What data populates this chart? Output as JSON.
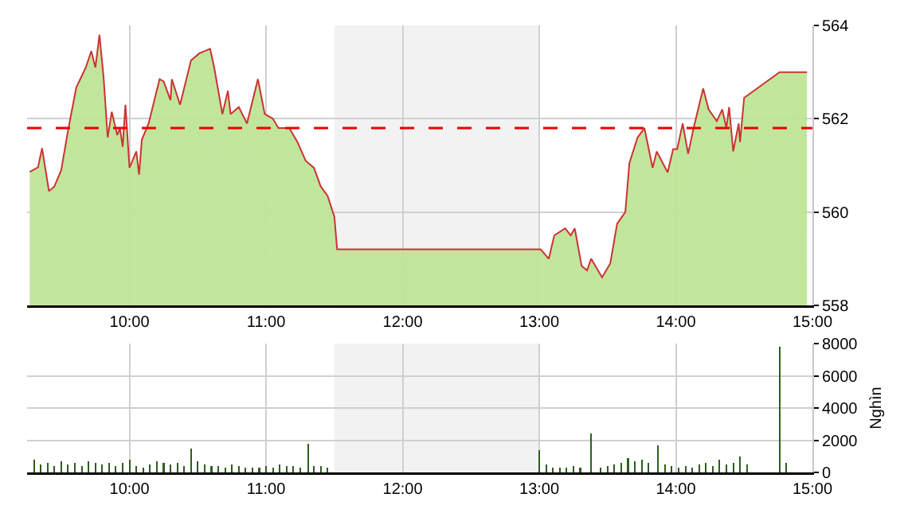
{
  "chart_data": [
    {
      "type": "area",
      "x": [
        9.27,
        9.33,
        9.36,
        9.41,
        9.45,
        9.5,
        9.55,
        9.61,
        9.68,
        9.72,
        9.75,
        9.78,
        9.81,
        9.84,
        9.87,
        9.91,
        9.93,
        9.95,
        9.97,
        10.0,
        10.05,
        10.07,
        10.09,
        10.14,
        10.22,
        10.25,
        10.3,
        10.31,
        10.37,
        10.45,
        10.51,
        10.59,
        10.62,
        10.68,
        10.72,
        10.74,
        10.8,
        10.86,
        10.94,
        10.99,
        11.05,
        11.09,
        11.17,
        11.23,
        11.29,
        11.35,
        11.4,
        11.45,
        11.5,
        11.52,
        13.01,
        13.07,
        13.11,
        13.19,
        13.23,
        13.26,
        13.31,
        13.35,
        13.38,
        13.46,
        13.52,
        13.57,
        13.63,
        13.66,
        13.72,
        13.77,
        13.83,
        13.86,
        13.94,
        13.98,
        14.01,
        14.05,
        14.09,
        14.13,
        14.2,
        14.24,
        14.3,
        14.34,
        14.37,
        14.39,
        14.42,
        14.46,
        14.47,
        14.5,
        14.76,
        14.96
      ],
      "series": [
        {
          "color": "#cc3333",
          "values": [
            560.86,
            560.96,
            561.37,
            560.45,
            560.55,
            560.9,
            561.75,
            562.67,
            563.1,
            563.45,
            563.1,
            563.8,
            562.9,
            561.6,
            562.15,
            561.65,
            561.8,
            561.4,
            562.3,
            560.95,
            561.3,
            560.8,
            561.55,
            561.9,
            562.85,
            562.8,
            562.4,
            562.85,
            562.3,
            563.25,
            563.4,
            563.5,
            563.1,
            562.1,
            562.6,
            562.1,
            562.25,
            561.9,
            562.85,
            562.1,
            562.0,
            561.8,
            561.8,
            561.5,
            561.1,
            560.95,
            560.55,
            560.35,
            559.9,
            559.2,
            559.2,
            559.0,
            559.5,
            559.65,
            559.5,
            559.65,
            558.85,
            558.75,
            559.0,
            558.6,
            558.9,
            559.75,
            560.0,
            561.05,
            561.6,
            561.8,
            560.95,
            561.3,
            560.85,
            561.35,
            561.35,
            561.9,
            561.25,
            561.8,
            562.65,
            562.2,
            561.95,
            562.2,
            561.8,
            562.25,
            561.3,
            561.9,
            561.5,
            562.45,
            563.0,
            563.0
          ]
        }
      ],
      "xlim": [
        9.25,
        15
      ],
      "xticks": [
        {
          "value": 10,
          "label": "10:00"
        },
        {
          "value": 11,
          "label": "11:00"
        },
        {
          "value": 12,
          "label": "12:00"
        },
        {
          "value": 13,
          "label": "13:00"
        },
        {
          "value": 14,
          "label": "14:00"
        },
        {
          "value": 15,
          "label": "15:00"
        }
      ],
      "ylim": [
        558,
        564
      ],
      "yticks": [
        558,
        560,
        562,
        564
      ],
      "grid": true,
      "ref_lines": [
        {
          "axis": "y",
          "value": 561.8,
          "color": "#ee0000",
          "line_style": "dashed"
        }
      ],
      "bands": [
        {
          "axis": "x",
          "from": 11.5,
          "to": 13.0,
          "color": "#f2f2f2"
        }
      ]
    },
    {
      "type": "bar",
      "ylabel": "Nghìn",
      "x": [
        9.3,
        9.35,
        9.4,
        9.45,
        9.5,
        9.55,
        9.6,
        9.65,
        9.7,
        9.75,
        9.8,
        9.85,
        9.9,
        9.95,
        10.0,
        10.05,
        10.1,
        10.15,
        10.2,
        10.25,
        10.3,
        10.35,
        10.4,
        10.45,
        10.5,
        10.55,
        10.6,
        10.65,
        10.7,
        10.75,
        10.8,
        10.85,
        10.9,
        10.95,
        11.0,
        11.05,
        11.1,
        11.15,
        11.2,
        11.25,
        11.31,
        11.35,
        11.4,
        11.45,
        13.0,
        13.05,
        13.1,
        13.15,
        13.2,
        13.25,
        13.3,
        13.38,
        13.45,
        13.5,
        13.55,
        13.6,
        13.65,
        13.7,
        13.75,
        13.8,
        13.87,
        13.92,
        13.97,
        14.02,
        14.07,
        14.12,
        14.17,
        14.22,
        14.27,
        14.32,
        14.37,
        14.42,
        14.47,
        14.52,
        14.76,
        14.81
      ],
      "series": [
        {
          "color": "#2e5e1e",
          "values": [
            800,
            500,
            600,
            400,
            700,
            500,
            600,
            400,
            700,
            600,
            500,
            600,
            400,
            600,
            800,
            400,
            300,
            500,
            700,
            600,
            500,
            600,
            400,
            1500,
            700,
            500,
            400,
            400,
            300,
            500,
            400,
            300,
            300,
            300,
            400,
            300,
            500,
            400,
            400,
            300,
            1800,
            400,
            400,
            300,
            1400,
            500,
            300,
            300,
            300,
            400,
            300,
            2400,
            300,
            400,
            500,
            600,
            900,
            700,
            800,
            600,
            1700,
            500,
            400,
            300,
            400,
            300,
            500,
            600,
            400,
            800,
            500,
            600,
            1000,
            500,
            7800,
            600
          ]
        }
      ],
      "xlim": [
        9.25,
        15
      ],
      "xticks": [
        {
          "value": 10,
          "label": "10:00"
        },
        {
          "value": 11,
          "label": "11:00"
        },
        {
          "value": 12,
          "label": "12:00"
        },
        {
          "value": 13,
          "label": "13:00"
        },
        {
          "value": 14,
          "label": "14:00"
        },
        {
          "value": 15,
          "label": "15:00"
        }
      ],
      "ylim": [
        0,
        8000
      ],
      "yticks": [
        0,
        2000,
        4000,
        6000,
        8000
      ],
      "grid": true,
      "bands": [
        {
          "axis": "x",
          "from": 11.5,
          "to": 13.0,
          "color": "#f2f2f2"
        }
      ]
    }
  ]
}
